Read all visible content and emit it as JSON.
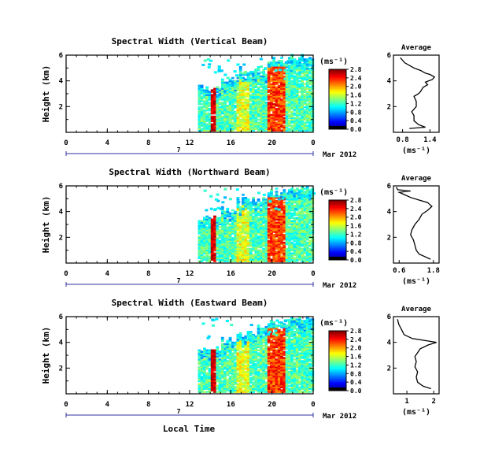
{
  "chart_data": [
    {
      "type": "heatmap",
      "title": "Spectral Width (Vertical Beam)",
      "ylabel": "Height (km)",
      "xlim": [
        0,
        24
      ],
      "xticks": [
        "0",
        "4",
        "8",
        "12",
        "16",
        "20",
        "0"
      ],
      "ylim": [
        0,
        6
      ],
      "yticks": [
        "2",
        "4",
        "6"
      ],
      "date_axis": {
        "day": "7",
        "month": "Mar 2012"
      },
      "colorbar": {
        "unit": "(ms⁻¹)",
        "ticks": [
          "0.0",
          "0.4",
          "0.8",
          "1.2",
          "1.6",
          "2.0",
          "2.4",
          "2.8"
        ],
        "range": [
          0,
          2.8
        ]
      },
      "average": {
        "title": "Average",
        "xlabel": "(ms⁻¹)",
        "xlim": [
          0.6,
          1.6
        ],
        "xticks": [
          "0.8",
          "1.4"
        ],
        "ylim": [
          0,
          6
        ],
        "yticks": [
          "2",
          "4",
          "6"
        ],
        "profile": [
          [
            0.95,
            0.3
          ],
          [
            1.3,
            0.4
          ],
          [
            1.15,
            0.6
          ],
          [
            1.05,
            0.9
          ],
          [
            1.05,
            1.3
          ],
          [
            1.0,
            1.6
          ],
          [
            1.1,
            2.0
          ],
          [
            1.1,
            2.4
          ],
          [
            1.05,
            2.8
          ],
          [
            1.15,
            3.0
          ],
          [
            1.2,
            3.2
          ],
          [
            1.25,
            3.5
          ],
          [
            1.35,
            3.7
          ],
          [
            1.3,
            3.9
          ],
          [
            1.45,
            4.1
          ],
          [
            1.5,
            4.3
          ],
          [
            1.4,
            4.5
          ],
          [
            1.3,
            4.6
          ],
          [
            1.2,
            4.8
          ],
          [
            1.05,
            5.0
          ],
          [
            0.95,
            5.2
          ],
          [
            0.85,
            5.4
          ],
          [
            0.8,
            5.6
          ],
          [
            0.75,
            5.8
          ]
        ]
      }
    },
    {
      "type": "heatmap",
      "title": "Spectral Width (Northward Beam)",
      "ylabel": "Height (km)",
      "xlim": [
        0,
        24
      ],
      "xticks": [
        "0",
        "4",
        "8",
        "12",
        "16",
        "20",
        "0"
      ],
      "ylim": [
        0,
        6
      ],
      "yticks": [
        "2",
        "4",
        "6"
      ],
      "date_axis": {
        "day": "7",
        "month": "Mar 2012"
      },
      "colorbar": {
        "unit": "(ms⁻¹)",
        "ticks": [
          "0.0",
          "0.4",
          "0.8",
          "1.2",
          "1.6",
          "2.0",
          "2.4",
          "2.8"
        ],
        "range": [
          0,
          2.8
        ]
      },
      "average": {
        "title": "Average",
        "xlabel": "(ms⁻¹)",
        "xlim": [
          0.4,
          2.0
        ],
        "xticks": [
          "0.6",
          "1.8"
        ],
        "ylim": [
          0,
          6
        ],
        "yticks": [
          "2",
          "4",
          "6"
        ],
        "profile": [
          [
            1.7,
            0.3
          ],
          [
            1.5,
            0.5
          ],
          [
            1.3,
            0.7
          ],
          [
            1.2,
            1.0
          ],
          [
            1.15,
            1.4
          ],
          [
            1.1,
            1.8
          ],
          [
            1.0,
            2.2
          ],
          [
            1.05,
            2.6
          ],
          [
            1.15,
            3.0
          ],
          [
            1.3,
            3.4
          ],
          [
            1.4,
            3.8
          ],
          [
            1.6,
            4.1
          ],
          [
            1.75,
            4.4
          ],
          [
            1.6,
            4.7
          ],
          [
            1.3,
            4.9
          ],
          [
            1.0,
            5.1
          ],
          [
            0.8,
            5.3
          ],
          [
            0.6,
            5.5
          ],
          [
            1.0,
            5.6
          ],
          [
            0.55,
            5.7
          ],
          [
            0.5,
            5.9
          ]
        ]
      }
    },
    {
      "type": "heatmap",
      "title": "Spectral Width (Eastward Beam)",
      "ylabel": "Height (km)",
      "xlabel": "Local Time",
      "xlim": [
        0,
        24
      ],
      "xticks": [
        "0",
        "4",
        "8",
        "12",
        "16",
        "20",
        "0"
      ],
      "ylim": [
        0,
        6
      ],
      "yticks": [
        "2",
        "4",
        "6"
      ],
      "date_axis": {
        "day": "7",
        "month": "Mar 2012"
      },
      "colorbar": {
        "unit": "(ms⁻¹)",
        "ticks": [
          "0.0",
          "0.4",
          "0.8",
          "1.2",
          "1.6",
          "2.0",
          "2.4",
          "2.8"
        ],
        "range": [
          0,
          2.8
        ]
      },
      "average": {
        "title": "Average",
        "xlabel": "(ms⁻¹)",
        "xlim": [
          0.5,
          2.2
        ],
        "xticks": [
          "1",
          "2"
        ],
        "ylim": [
          0,
          6
        ],
        "yticks": [
          "2",
          "4",
          "6"
        ],
        "profile": [
          [
            1.9,
            0.4
          ],
          [
            1.6,
            0.6
          ],
          [
            1.4,
            0.9
          ],
          [
            1.35,
            1.3
          ],
          [
            1.4,
            1.7
          ],
          [
            1.3,
            2.1
          ],
          [
            1.35,
            2.5
          ],
          [
            1.3,
            2.9
          ],
          [
            1.4,
            3.2
          ],
          [
            1.5,
            3.5
          ],
          [
            1.8,
            3.8
          ],
          [
            2.1,
            4.0
          ],
          [
            1.8,
            4.1
          ],
          [
            1.2,
            4.3
          ],
          [
            0.9,
            4.6
          ],
          [
            0.8,
            5.0
          ],
          [
            0.7,
            5.4
          ],
          [
            0.65,
            5.8
          ]
        ]
      }
    }
  ]
}
